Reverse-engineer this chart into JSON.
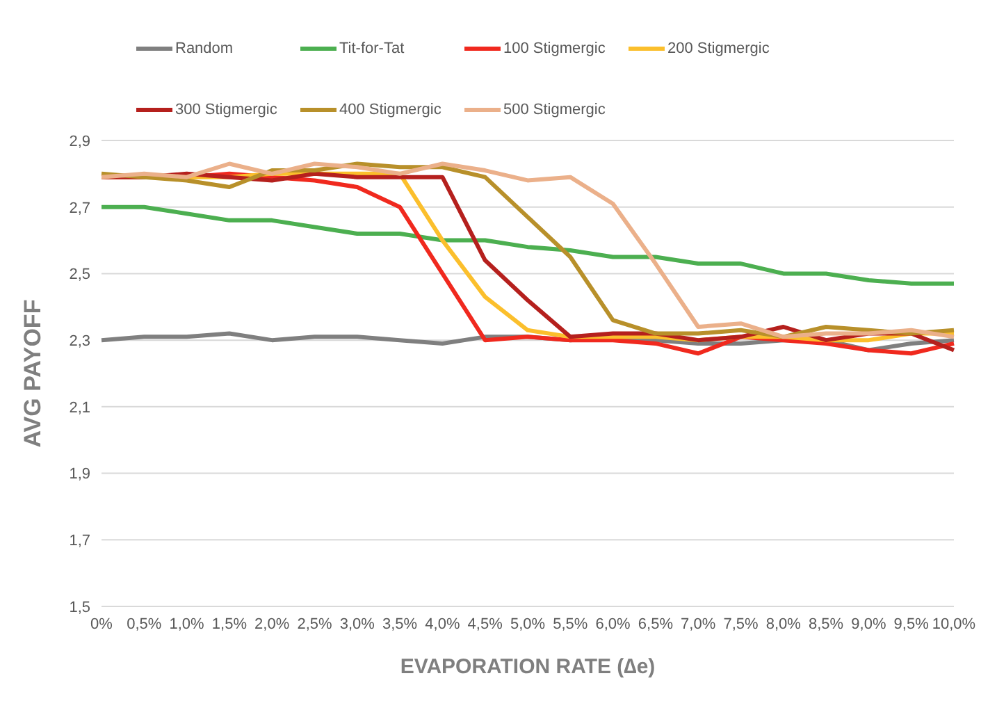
{
  "chart_data": {
    "type": "line",
    "xlabel": "EVAPORATION RATE (∆e)",
    "ylabel": "AVG  PAYOFF",
    "categories": [
      "0%",
      "0,5%",
      "1,0%",
      "1,5%",
      "2,0%",
      "2,5%",
      "3,0%",
      "3,5%",
      "4,0%",
      "4,5%",
      "5,0%",
      "5,5%",
      "6,0%",
      "6,5%",
      "7,0%",
      "7,5%",
      "8,0%",
      "8,5%",
      "9,0%",
      "9,5%",
      "10,0%"
    ],
    "series": [
      {
        "name": "Random",
        "color": "#7f7f7f",
        "values": [
          2.3,
          2.31,
          2.31,
          2.32,
          2.3,
          2.31,
          2.31,
          2.3,
          2.29,
          2.31,
          2.31,
          2.3,
          2.31,
          2.3,
          2.29,
          2.29,
          2.3,
          2.3,
          2.27,
          2.29,
          2.3
        ]
      },
      {
        "name": "Tit-for-Tat",
        "color": "#4caf50",
        "values": [
          2.7,
          2.7,
          2.68,
          2.66,
          2.66,
          2.64,
          2.62,
          2.62,
          2.6,
          2.6,
          2.58,
          2.57,
          2.55,
          2.55,
          2.53,
          2.53,
          2.5,
          2.5,
          2.48,
          2.47,
          2.47
        ]
      },
      {
        "name": "100 Stigmergic",
        "color": "#f0291e",
        "values": [
          2.79,
          2.79,
          2.79,
          2.8,
          2.79,
          2.78,
          2.76,
          2.7,
          2.5,
          2.3,
          2.31,
          2.3,
          2.3,
          2.29,
          2.26,
          2.31,
          2.3,
          2.29,
          2.27,
          2.26,
          2.29
        ]
      },
      {
        "name": "200 Stigmergic",
        "color": "#fbbf2c",
        "values": [
          2.79,
          2.79,
          2.79,
          2.79,
          2.8,
          2.8,
          2.8,
          2.8,
          2.6,
          2.43,
          2.33,
          2.31,
          2.31,
          2.31,
          2.3,
          2.31,
          2.31,
          2.3,
          2.3,
          2.32,
          2.32
        ]
      },
      {
        "name": "300 Stigmergic",
        "color": "#b5201d",
        "values": [
          2.79,
          2.79,
          2.8,
          2.79,
          2.78,
          2.8,
          2.79,
          2.79,
          2.79,
          2.54,
          2.42,
          2.31,
          2.32,
          2.32,
          2.3,
          2.31,
          2.34,
          2.3,
          2.32,
          2.32,
          2.27
        ]
      },
      {
        "name": "400 Stigmergic",
        "color": "#b8902a",
        "values": [
          2.8,
          2.79,
          2.78,
          2.76,
          2.81,
          2.81,
          2.83,
          2.82,
          2.82,
          2.79,
          2.67,
          2.55,
          2.36,
          2.32,
          2.32,
          2.33,
          2.31,
          2.34,
          2.33,
          2.32,
          2.33
        ]
      },
      {
        "name": "500 Stigmergic",
        "color": "#ebb08a",
        "values": [
          2.79,
          2.8,
          2.79,
          2.83,
          2.8,
          2.83,
          2.82,
          2.8,
          2.83,
          2.81,
          2.78,
          2.79,
          2.71,
          2.53,
          2.34,
          2.35,
          2.31,
          2.32,
          2.32,
          2.33,
          2.31
        ]
      }
    ],
    "ylim": [
      1.5,
      2.9
    ],
    "yticks": [
      {
        "value": 1.5,
        "label": "1,5"
      },
      {
        "value": 1.7,
        "label": "1,7"
      },
      {
        "value": 1.9,
        "label": "1,9"
      },
      {
        "value": 2.1,
        "label": "2,1"
      },
      {
        "value": 2.3,
        "label": "2,3"
      },
      {
        "value": 2.5,
        "label": "2,5"
      },
      {
        "value": 2.7,
        "label": "2,7"
      },
      {
        "value": 2.9,
        "label": "2,9"
      }
    ],
    "grid": "y",
    "legend": "top",
    "marker": "none",
    "line_style": "solid"
  }
}
